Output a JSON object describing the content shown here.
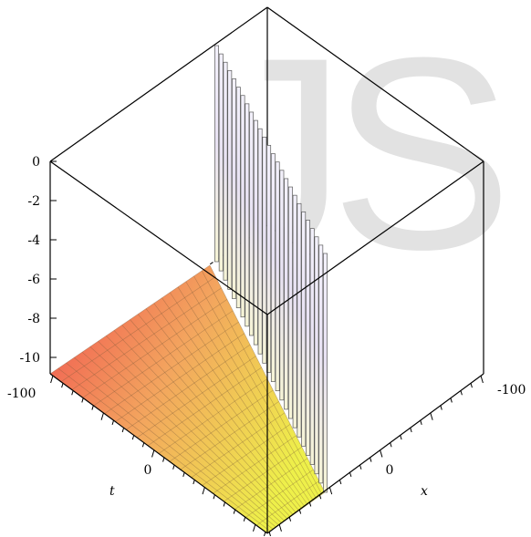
{
  "chart_data": {
    "type": "surface3d",
    "axes": {
      "t": {
        "label": "t",
        "range": [
          -100,
          100
        ],
        "tick_labels": [
          "-100",
          "0"
        ]
      },
      "x": {
        "label": "x",
        "range": [
          -100,
          100
        ],
        "tick_labels": [
          "-100",
          "0"
        ]
      },
      "z": {
        "label": "",
        "range": [
          -11,
          0
        ],
        "tick_labels": [
          "0",
          "-2",
          "-4",
          "-6",
          "-8",
          "-10"
        ]
      }
    },
    "colormap": "red-to-yellow",
    "grid_lines": 20,
    "spike_count": 26,
    "watermark": "JS"
  }
}
